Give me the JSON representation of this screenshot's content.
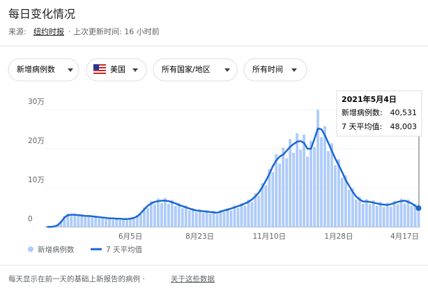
{
  "header": {
    "title": "每日变化情况",
    "source_label": "来源:",
    "source_link": "纽约时报",
    "updated": "· 上次更新时间: 16 小时前"
  },
  "filters": [
    "新增病例数",
    "美国",
    "所有国家/地区",
    "所有时间"
  ],
  "chart_data": {
    "type": "bar-line",
    "categories": [
      null,
      null,
      null,
      null,
      null,
      null,
      null,
      null,
      null,
      null,
      null,
      null,
      null,
      null,
      null,
      null,
      null,
      null,
      null,
      null,
      null,
      null,
      null,
      null,
      "6月5日",
      null,
      null,
      null,
      null,
      null,
      null,
      null,
      null,
      null,
      null,
      null,
      null,
      null,
      null,
      null,
      null,
      null,
      null,
      null,
      "8月23日",
      null,
      null,
      null,
      null,
      null,
      null,
      null,
      null,
      null,
      null,
      null,
      null,
      null,
      null,
      null,
      null,
      null,
      null,
      null,
      "11月10日",
      null,
      null,
      null,
      null,
      null,
      null,
      null,
      null,
      null,
      null,
      null,
      null,
      null,
      null,
      null,
      null,
      null,
      null,
      null,
      "1月28日",
      null,
      null,
      null,
      null,
      null,
      null,
      null,
      null,
      null,
      null,
      null,
      null,
      null,
      null,
      null,
      null,
      null,
      null,
      "4月17日",
      null,
      null,
      null,
      null
    ],
    "series": [
      {
        "name": "新增病例数",
        "color": "#aecbfa",
        "values": [
          0,
          300,
          1500,
          5000,
          15000,
          27000,
          34000,
          28000,
          33000,
          27000,
          32000,
          25000,
          30000,
          24000,
          28000,
          22000,
          26000,
          20000,
          24000,
          19000,
          23000,
          18000,
          22000,
          18000,
          23000,
          21000,
          30000,
          32000,
          50000,
          49000,
          66000,
          58000,
          72000,
          61000,
          74000,
          59000,
          69000,
          54000,
          61000,
          48000,
          55000,
          42000,
          48000,
          38000,
          45000,
          36000,
          43000,
          34000,
          41000,
          32000,
          43000,
          38000,
          48000,
          42000,
          55000,
          48000,
          61000,
          54000,
          70000,
          63000,
          86000,
          79000,
          112000,
          106000,
          148000,
          140000,
          186000,
          162000,
          203000,
          176000,
          225000,
          190000,
          240000,
          198000,
          236000,
          180000,
          220000,
          205000,
          300000,
          230000,
          258000,
          194000,
          214000,
          158000,
          173000,
          126000,
          132000,
          95000,
          99000,
          70000,
          77000,
          59000,
          71000,
          58000,
          68000,
          54000,
          64000,
          51000,
          62000,
          52000,
          67000,
          58000,
          72000,
          60000,
          70000,
          54000,
          59000,
          40531
        ]
      },
      {
        "name": "7 天平均值",
        "color": "#1967d2",
        "values": [
          0,
          0,
          1000,
          4000,
          12000,
          24000,
          30000,
          31000,
          31000,
          30000,
          29000,
          28000,
          28000,
          27000,
          26000,
          25000,
          24000,
          23000,
          22000,
          22000,
          21000,
          21000,
          20000,
          20000,
          21000,
          23000,
          27000,
          35000,
          45000,
          54000,
          60000,
          64000,
          66000,
          67000,
          67000,
          66000,
          63000,
          60000,
          56000,
          53000,
          50000,
          47000,
          44000,
          42000,
          41000,
          40000,
          39000,
          38000,
          37000,
          36000,
          39000,
          42000,
          44000,
          47000,
          50000,
          53000,
          56000,
          60000,
          64000,
          70000,
          78000,
          88000,
          102000,
          118000,
          135000,
          155000,
          170000,
          180000,
          185000,
          195000,
          205000,
          212000,
          218000,
          220000,
          215000,
          200000,
          200000,
          225000,
          252000,
          250000,
          235000,
          215000,
          195000,
          175000,
          158000,
          140000,
          120000,
          105000,
          90000,
          78000,
          70000,
          65000,
          65000,
          64000,
          62000,
          60000,
          58000,
          57000,
          56000,
          58000,
          61000,
          64000,
          66000,
          67000,
          64000,
          60000,
          54000,
          48003
        ]
      }
    ],
    "ylim": [
      0,
      320000
    ],
    "yticks": [
      0,
      {
        "value": 100000,
        "label": "10万"
      },
      {
        "value": 200000,
        "label": "20万"
      },
      {
        "value": 300000,
        "label": "30万"
      }
    ],
    "grid": true
  },
  "tooltip": {
    "date": "2021年5月4日",
    "rows": [
      {
        "label": "新增病例数:",
        "value": "40,531"
      },
      {
        "label": "7 天平均值:",
        "value": "48,003"
      }
    ]
  },
  "footer": {
    "note": "每天显示在前一天的基础上新报告的病例 ·",
    "link": "关于这些数据"
  }
}
